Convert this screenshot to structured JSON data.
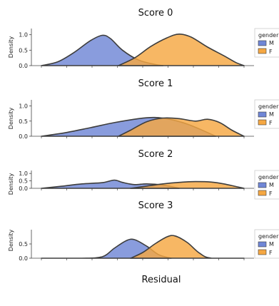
{
  "chart_data": [
    {
      "type": "area",
      "title": "Score 0",
      "xlabel": "",
      "ylabel": "Density",
      "ylim": [
        0,
        1.2
      ],
      "yticks": [
        "0.0",
        "0.5",
        "1.0"
      ],
      "legend": {
        "title": "gender",
        "placement": "right",
        "entries": [
          "M",
          "F"
        ]
      },
      "series": [
        {
          "name": "M",
          "x": [
            0.0,
            0.08,
            0.16,
            0.24,
            0.3,
            0.34,
            0.4,
            0.48,
            0.56,
            0.6
          ],
          "values": [
            0.0,
            0.12,
            0.42,
            0.8,
            0.98,
            0.88,
            0.5,
            0.18,
            0.04,
            0.0
          ]
        },
        {
          "name": "F",
          "x": [
            0.38,
            0.46,
            0.54,
            0.62,
            0.68,
            0.74,
            0.82,
            0.9,
            0.96,
            1.0
          ],
          "values": [
            0.0,
            0.25,
            0.62,
            0.9,
            1.02,
            0.92,
            0.6,
            0.32,
            0.1,
            0.0
          ]
        }
      ]
    },
    {
      "type": "area",
      "title": "Score 1",
      "xlabel": "",
      "ylabel": "Density",
      "ylim": [
        0,
        1.2
      ],
      "yticks": [
        "0.0",
        "0.5",
        "1.0"
      ],
      "legend": {
        "title": "gender",
        "placement": "right",
        "entries": [
          "M",
          "F"
        ]
      },
      "series": [
        {
          "name": "M",
          "x": [
            0.0,
            0.12,
            0.24,
            0.36,
            0.48,
            0.56,
            0.64,
            0.72,
            0.8,
            0.86
          ],
          "values": [
            0.0,
            0.12,
            0.28,
            0.45,
            0.58,
            0.62,
            0.55,
            0.4,
            0.18,
            0.0
          ]
        },
        {
          "name": "F",
          "x": [
            0.38,
            0.44,
            0.52,
            0.6,
            0.68,
            0.76,
            0.82,
            0.88,
            0.94,
            1.0
          ],
          "values": [
            0.0,
            0.2,
            0.48,
            0.6,
            0.58,
            0.5,
            0.56,
            0.45,
            0.2,
            0.0
          ]
        }
      ]
    },
    {
      "type": "area",
      "title": "Score 2",
      "xlabel": "",
      "ylabel": "Density",
      "ylim": [
        0,
        1.2
      ],
      "yticks": [
        "0.0",
        "0.5",
        "1.0"
      ],
      "legend": {
        "title": "gender",
        "placement": "right",
        "entries": [
          "M",
          "F"
        ]
      },
      "series": [
        {
          "name": "M",
          "x": [
            0.0,
            0.1,
            0.2,
            0.3,
            0.36,
            0.4,
            0.46,
            0.52,
            0.6,
            0.68
          ],
          "values": [
            0.0,
            0.14,
            0.3,
            0.38,
            0.55,
            0.4,
            0.25,
            0.3,
            0.22,
            0.0
          ]
        },
        {
          "name": "F",
          "x": [
            0.44,
            0.52,
            0.6,
            0.68,
            0.76,
            0.84,
            0.9,
            0.96,
            1.0
          ],
          "values": [
            0.0,
            0.15,
            0.3,
            0.4,
            0.45,
            0.42,
            0.3,
            0.12,
            0.0
          ]
        }
      ]
    },
    {
      "type": "area",
      "title": "Score 3",
      "xlabel": "Residual",
      "ylabel": "Density",
      "ylim": [
        0,
        1.0
      ],
      "yticks": [
        "0.0",
        "0.5"
      ],
      "legend": {
        "title": "gender",
        "placement": "right",
        "entries": [
          "M",
          "F"
        ]
      },
      "series": [
        {
          "name": "M",
          "x": [
            0.0,
            0.2,
            0.3,
            0.36,
            0.42,
            0.46,
            0.52,
            0.58,
            0.64
          ],
          "values": [
            0.0,
            0.0,
            0.05,
            0.35,
            0.62,
            0.65,
            0.42,
            0.12,
            0.0
          ]
        },
        {
          "name": "F",
          "x": [
            0.44,
            0.5,
            0.56,
            0.62,
            0.66,
            0.72,
            0.78,
            0.84,
            1.0
          ],
          "values": [
            0.0,
            0.2,
            0.5,
            0.75,
            0.78,
            0.55,
            0.18,
            0.0,
            0.0
          ]
        }
      ]
    }
  ],
  "colors": {
    "M": "#6f86d6",
    "F": "#f5a742",
    "outline": "#3d3d3d"
  }
}
